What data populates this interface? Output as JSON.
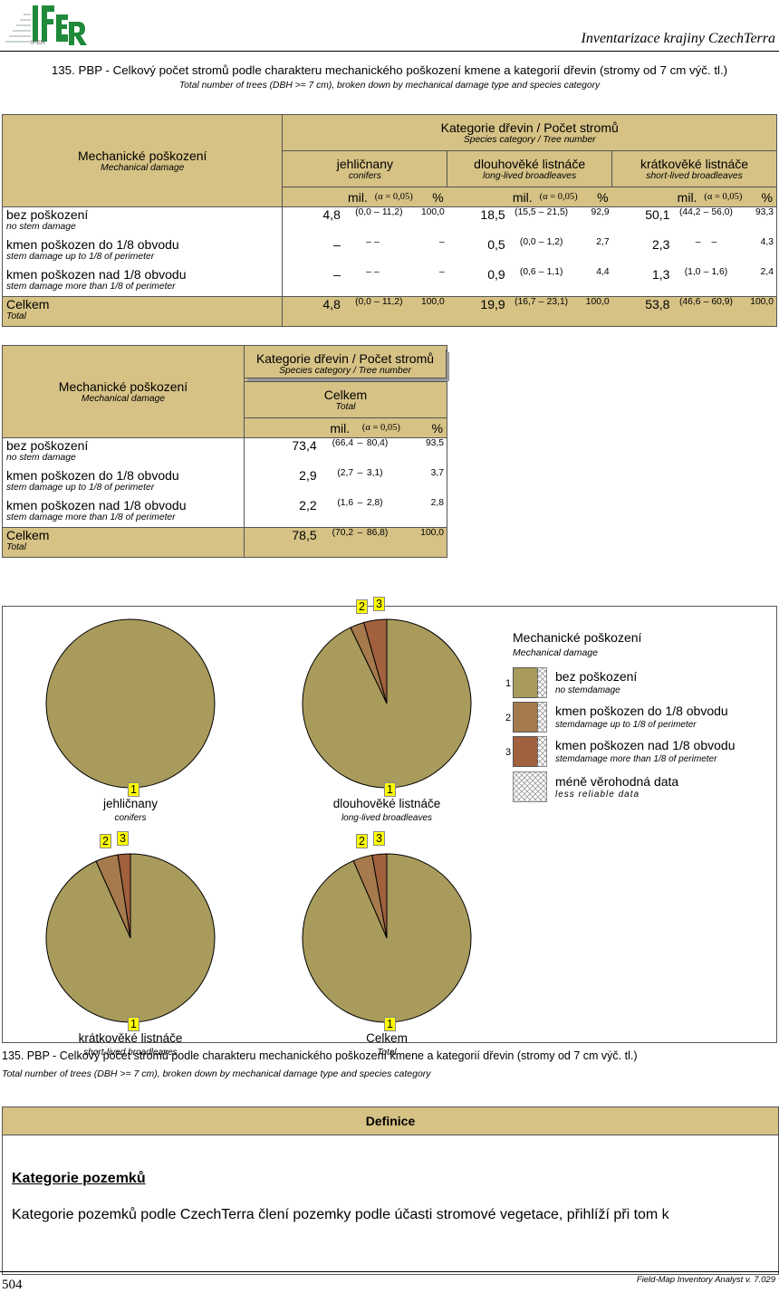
{
  "header": {
    "logo_text": "IFER",
    "title": "Inventarizace krajiny CzechTerra"
  },
  "doc": {
    "title": "135. PBP - Celkový počet stromů podle charakteru mechanického poškození kmene a kategorií dřevin (stromy od 7 cm výč. tl.)",
    "subtitle": "Total number of trees (DBH >= 7 cm), broken down by mechanical damage type and species category"
  },
  "table1": {
    "rowhead_main": "Mechanické poškození",
    "rowhead_sub": "Mechanical damage",
    "group_main": "Kategorie dřevin / Počet stromů",
    "group_sub": "Species category / Tree number",
    "unit_label": "mil.",
    "alpha_label": "(α = 0,05)",
    "pct_label": "%",
    "columns": [
      {
        "main": "jehličnany",
        "sub": "conifers"
      },
      {
        "main": "dlouhověké listnáče",
        "sub": "long-lived broadleaves"
      },
      {
        "main": "krátkověké listnáče",
        "sub": "short-lived broadleaves"
      }
    ],
    "rows": [
      {
        "main": "bez poškození",
        "sub": "no stem damage",
        "cells": [
          {
            "v": "4,8",
            "lo": "(0,0",
            "d": "–",
            "hi": "11,2)",
            "p": "100,0"
          },
          {
            "v": "18,5",
            "lo": "(15,5",
            "d": "–",
            "hi": "21,5)",
            "p": "92,9"
          },
          {
            "v": "50,1",
            "lo": "(44,2",
            "d": "–",
            "hi": "56,0)",
            "p": "93,3"
          }
        ]
      },
      {
        "main": "kmen poškozen do 1/8 obvodu",
        "sub": "stem damage up to 1/8 of perimeter",
        "cells": [
          {
            "v": "–",
            "lo": "–",
            "d": "–",
            "hi": "",
            "p": "–"
          },
          {
            "v": "0,5",
            "lo": "(0,0",
            "d": "–",
            "hi": "1,2)",
            "p": "2,7"
          },
          {
            "v": "2,3",
            "lo": "–",
            "d": "",
            "hi": "–",
            "p": "4,3"
          }
        ]
      },
      {
        "main": "kmen poškozen nad 1/8 obvodu",
        "sub": "stem damage more than 1/8 of perimeter",
        "cells": [
          {
            "v": "–",
            "lo": "–",
            "d": "–",
            "hi": "",
            "p": "–"
          },
          {
            "v": "0,9",
            "lo": "(0,6",
            "d": "–",
            "hi": "1,1)",
            "p": "4,4"
          },
          {
            "v": "1,3",
            "lo": "(1,0",
            "d": "–",
            "hi": "1,6)",
            "p": "2,4"
          }
        ]
      }
    ],
    "total": {
      "main": "Celkem",
      "sub": "Total",
      "cells": [
        {
          "v": "4,8",
          "lo": "(0,0",
          "d": "–",
          "hi": "11,2)",
          "p": "100,0"
        },
        {
          "v": "19,9",
          "lo": "(16,7",
          "d": "–",
          "hi": "23,1)",
          "p": "100,0"
        },
        {
          "v": "53,8",
          "lo": "(46,6",
          "d": "–",
          "hi": "60,9)",
          "p": "100,0"
        }
      ]
    }
  },
  "table2": {
    "rowhead_main": "Mechanické poškození",
    "rowhead_sub": "Mechanical damage",
    "group_main": "Kategorie dřevin / Počet stromů",
    "group_sub": "Species category / Tree number",
    "col_main": "Celkem",
    "col_sub": "Total",
    "unit_label": "mil.",
    "alpha_label": "(α = 0,05)",
    "pct_label": "%",
    "rows": [
      {
        "main": "bez poškození",
        "sub": "no stem damage",
        "v": "73,4",
        "lo": "(66,4",
        "d": "–",
        "hi": "80,4)",
        "p": "93,5"
      },
      {
        "main": "kmen poškozen do 1/8 obvodu",
        "sub": "stem damage up to 1/8 of perimeter",
        "v": "2,9",
        "lo": "(2,7",
        "d": "–",
        "hi": "3,1)",
        "p": "3,7"
      },
      {
        "main": "kmen poškozen nad 1/8 obvodu",
        "sub": "stem damage more than 1/8 of perimeter",
        "v": "2,2",
        "lo": "(1,6",
        "d": "–",
        "hi": "2,8)",
        "p": "2,8"
      }
    ],
    "total": {
      "main": "Celkem",
      "sub": "Total",
      "v": "78,5",
      "lo": "(70,2",
      "d": "–",
      "hi": "86,8)",
      "p": "100,0"
    }
  },
  "chart_data": {
    "type": "pie",
    "colors": [
      "#a89b5c",
      "#a57a4c",
      "#a1603e"
    ],
    "pies": [
      {
        "label": "jehličnany",
        "sub": "conifers",
        "values": [
          100.0,
          0,
          0
        ],
        "tags": [
          "1",
          "",
          ""
        ]
      },
      {
        "label": "dlouhověké listnáče",
        "sub": "long-lived broadleaves",
        "values": [
          92.9,
          2.7,
          4.4
        ],
        "tags": [
          "1",
          "2",
          "3"
        ]
      },
      {
        "label": "krátkověké listnáče",
        "sub": "short-lived broadleaves",
        "values": [
          93.3,
          4.3,
          2.4
        ],
        "tags": [
          "1",
          "2",
          "3"
        ]
      },
      {
        "label": "Celkem",
        "sub": "Total",
        "values": [
          93.5,
          3.7,
          2.8
        ],
        "tags": [
          "1",
          "2",
          "3"
        ]
      }
    ],
    "legend": {
      "title": "Mechanické poškození",
      "subtitle": "Mechanical damage",
      "items": [
        {
          "num": "1",
          "main": "bez poškození",
          "sub": "no stemdamage"
        },
        {
          "num": "2",
          "main": "kmen poškozen do 1/8 obvodu",
          "sub": "stemdamage up to 1/8 of perimeter"
        },
        {
          "num": "3",
          "main": "kmen poškozen nad 1/8 obvodu",
          "sub": "stemdamage more than 1/8 of perimeter"
        }
      ],
      "less_reliable_main": "méně věrohodná data",
      "less_reliable_sub": "less reliable data"
    }
  },
  "caption": {
    "title": "135. PBP - Celkový počet stromů podle charakteru mechanického poškození kmene a kategorií dřevin (stromy od 7 cm výč. tl.)",
    "subtitle": "Total number of trees (DBH >= 7 cm), broken down by mechanical damage type and species category"
  },
  "definitions": {
    "bar_title": "Definice",
    "heading": "Kategorie pozemků",
    "text": "Kategorie pozemků podle CzechTerra člení pozemky podle účasti stromové vegetace, přihlíží při tom k"
  },
  "footer": {
    "page": "504",
    "app": "Field-Map Inventory Analyst v. 7.029"
  }
}
